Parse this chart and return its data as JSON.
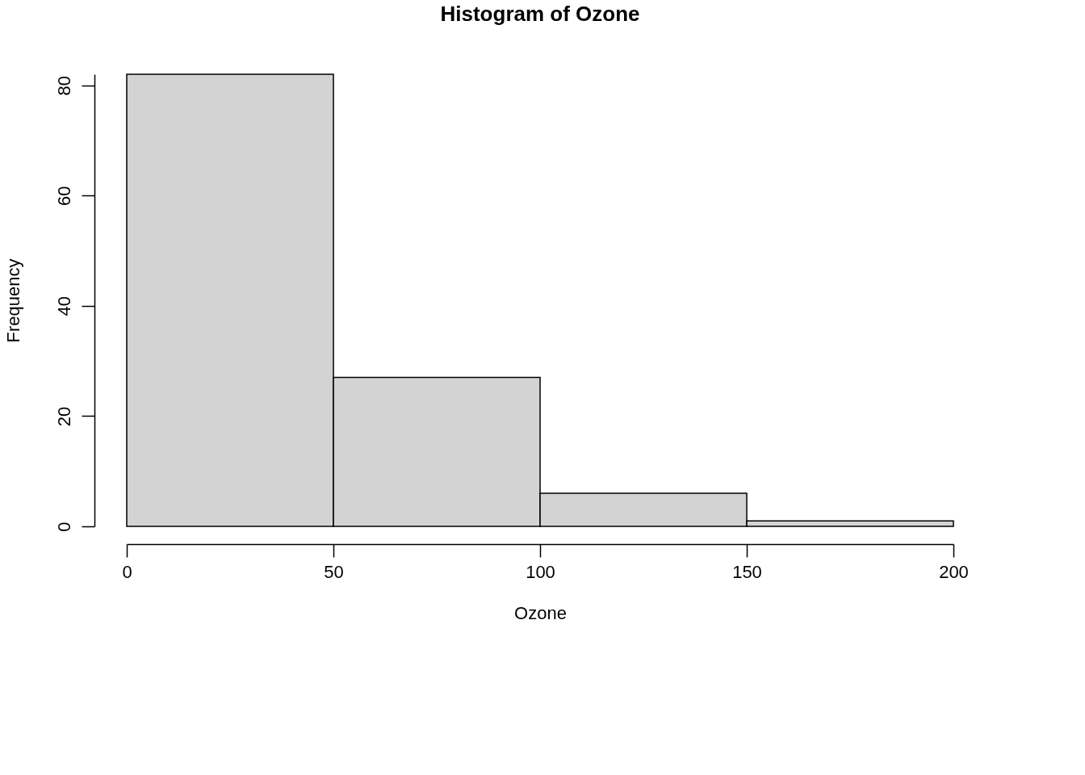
{
  "chart_data": {
    "type": "histogram",
    "title": "Histogram of Ozone",
    "xlabel": "Ozone",
    "ylabel": "Frequency",
    "bins": [
      0,
      50,
      100,
      150,
      200
    ],
    "values": [
      82,
      27,
      6,
      1
    ],
    "color": "#d3d3d3",
    "xlim": [
      0,
      200
    ],
    "xticks": [
      0,
      50,
      100,
      150,
      200
    ],
    "ylim": [
      0,
      82
    ],
    "yticks": [
      0,
      20,
      40,
      60,
      80
    ],
    "grid": false
  }
}
